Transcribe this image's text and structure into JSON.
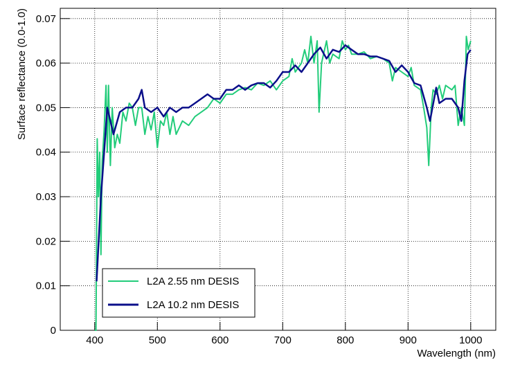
{
  "chart_data": {
    "type": "line",
    "x_label": "Wavelength (nm)",
    "y_label": "Surface reflectance (0.0-1.0)",
    "xlim": [
      345,
      1040
    ],
    "ylim": [
      0,
      0.0723
    ],
    "xticks": [
      400,
      500,
      600,
      700,
      800,
      900,
      1000
    ],
    "yticks": [
      0,
      0.01,
      0.02,
      0.03,
      0.04,
      0.05,
      0.06,
      0.07
    ],
    "grid": true,
    "legend_position": "lower-left",
    "series": [
      {
        "name": "L2A 2.55 nm DESIS",
        "color": "#22cc7a",
        "x": [
          400,
          402,
          404,
          406,
          408,
          410,
          412,
          415,
          418,
          420,
          422,
          425,
          428,
          432,
          436,
          440,
          445,
          450,
          455,
          460,
          465,
          470,
          475,
          480,
          485,
          490,
          495,
          500,
          505,
          510,
          515,
          520,
          525,
          530,
          540,
          550,
          560,
          570,
          580,
          590,
          600,
          610,
          620,
          630,
          640,
          650,
          660,
          670,
          680,
          690,
          700,
          710,
          715,
          720,
          730,
          735,
          740,
          745,
          750,
          755,
          758,
          762,
          770,
          775,
          780,
          790,
          795,
          800,
          805,
          810,
          820,
          830,
          840,
          850,
          860,
          870,
          875,
          880,
          890,
          900,
          905,
          910,
          920,
          925,
          930,
          933,
          937,
          940,
          945,
          950,
          955,
          960,
          970,
          975,
          980,
          985,
          990,
          993,
          996,
          1000
        ],
        "values": [
          0,
          0,
          0.043,
          0.03,
          0.04,
          0.017,
          0.038,
          0.045,
          0.055,
          0.04,
          0.055,
          0.037,
          0.05,
          0.041,
          0.044,
          0.042,
          0.049,
          0.047,
          0.051,
          0.05,
          0.046,
          0.05,
          0.05,
          0.044,
          0.048,
          0.045,
          0.049,
          0.041,
          0.047,
          0.046,
          0.049,
          0.044,
          0.048,
          0.044,
          0.047,
          0.046,
          0.048,
          0.049,
          0.05,
          0.052,
          0.051,
          0.053,
          0.053,
          0.054,
          0.0545,
          0.054,
          0.0555,
          0.055,
          0.056,
          0.054,
          0.056,
          0.057,
          0.061,
          0.058,
          0.06,
          0.063,
          0.06,
          0.066,
          0.06,
          0.065,
          0.049,
          0.06,
          0.065,
          0.06,
          0.062,
          0.061,
          0.065,
          0.063,
          0.064,
          0.062,
          0.062,
          0.0625,
          0.061,
          0.0615,
          0.061,
          0.06,
          0.056,
          0.059,
          0.058,
          0.057,
          0.059,
          0.055,
          0.054,
          0.05,
          0.0455,
          0.037,
          0.05,
          0.054,
          0.053,
          0.055,
          0.052,
          0.055,
          0.054,
          0.055,
          0.046,
          0.05,
          0.046,
          0.066,
          0.063,
          0.065
        ]
      },
      {
        "name": "L2A 10.2 nm DESIS",
        "color": "#0b0f8a",
        "x": [
          403,
          410,
          415,
          420,
          425,
          430,
          440,
          450,
          460,
          470,
          475,
          480,
          490,
          500,
          510,
          520,
          530,
          540,
          550,
          560,
          570,
          580,
          590,
          600,
          610,
          620,
          630,
          640,
          650,
          660,
          670,
          680,
          690,
          700,
          710,
          720,
          730,
          740,
          750,
          760,
          770,
          780,
          790,
          800,
          810,
          820,
          830,
          840,
          850,
          860,
          870,
          880,
          890,
          900,
          910,
          920,
          930,
          935,
          945,
          950,
          960,
          970,
          980,
          985,
          990,
          995,
          1000
        ],
        "values": [
          0.011,
          0.03,
          0.04,
          0.05,
          0.047,
          0.044,
          0.049,
          0.05,
          0.05,
          0.052,
          0.054,
          0.05,
          0.049,
          0.05,
          0.048,
          0.05,
          0.049,
          0.05,
          0.05,
          0.051,
          0.052,
          0.053,
          0.052,
          0.052,
          0.054,
          0.054,
          0.055,
          0.054,
          0.055,
          0.0555,
          0.0555,
          0.0545,
          0.056,
          0.058,
          0.058,
          0.0595,
          0.058,
          0.06,
          0.062,
          0.0635,
          0.061,
          0.063,
          0.0625,
          0.064,
          0.063,
          0.062,
          0.062,
          0.0615,
          0.0615,
          0.061,
          0.0605,
          0.058,
          0.0595,
          0.058,
          0.0555,
          0.055,
          0.05,
          0.047,
          0.0545,
          0.051,
          0.052,
          0.052,
          0.05,
          0.047,
          0.056,
          0.062,
          0.063
        ]
      }
    ]
  }
}
